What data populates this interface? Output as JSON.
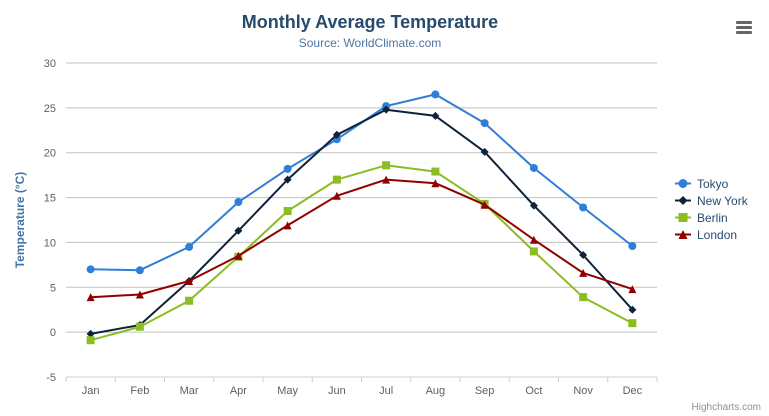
{
  "header": {
    "title": "Monthly Average Temperature",
    "subtitle": "Source: WorldClimate.com",
    "credits": "Highcharts.com",
    "export_menu_icon": "hamburger-icon"
  },
  "chart_data": {
    "type": "line",
    "title": "Monthly Average Temperature",
    "subtitle": "Source: WorldClimate.com",
    "categories": [
      "Jan",
      "Feb",
      "Mar",
      "Apr",
      "May",
      "Jun",
      "Jul",
      "Aug",
      "Sep",
      "Oct",
      "Nov",
      "Dec"
    ],
    "series": [
      {
        "name": "Tokyo",
        "color": "#2f7ed8",
        "marker": "circle",
        "values": [
          7.0,
          6.9,
          9.5,
          14.5,
          18.2,
          21.5,
          25.2,
          26.5,
          23.3,
          18.3,
          13.9,
          9.6
        ]
      },
      {
        "name": "New York",
        "color": "#0d233a",
        "marker": "diamond",
        "values": [
          -0.2,
          0.8,
          5.7,
          11.3,
          17.0,
          22.0,
          24.8,
          24.1,
          20.1,
          14.1,
          8.6,
          2.5
        ]
      },
      {
        "name": "Berlin",
        "color": "#8bbc21",
        "marker": "square",
        "values": [
          -0.9,
          0.6,
          3.5,
          8.4,
          13.5,
          17.0,
          18.6,
          17.9,
          14.3,
          9.0,
          3.9,
          1.0
        ]
      },
      {
        "name": "London",
        "color": "#910000",
        "marker": "triangle",
        "values": [
          3.9,
          4.2,
          5.7,
          8.5,
          11.9,
          15.2,
          17.0,
          16.6,
          14.2,
          10.3,
          6.6,
          4.8
        ]
      }
    ],
    "xlabel": "",
    "ylabel": "Temperature (°C)",
    "ylim": [
      -5,
      30
    ],
    "ytick_step": 5,
    "yticks": [
      -5,
      0,
      5,
      10,
      15,
      20,
      25,
      30
    ],
    "grid": true,
    "legend_position": "right"
  },
  "colors": {
    "title": "#274b6d",
    "subtitle": "#4d759e",
    "axis_title": "#4572a7",
    "axis_labels": "#606060",
    "gridline": "#c0c0c0",
    "axis_line": "#c0d0e0",
    "legend_text": "#274b6d",
    "credits": "#909090",
    "menu_icon": "#666666",
    "background": "#ffffff"
  }
}
